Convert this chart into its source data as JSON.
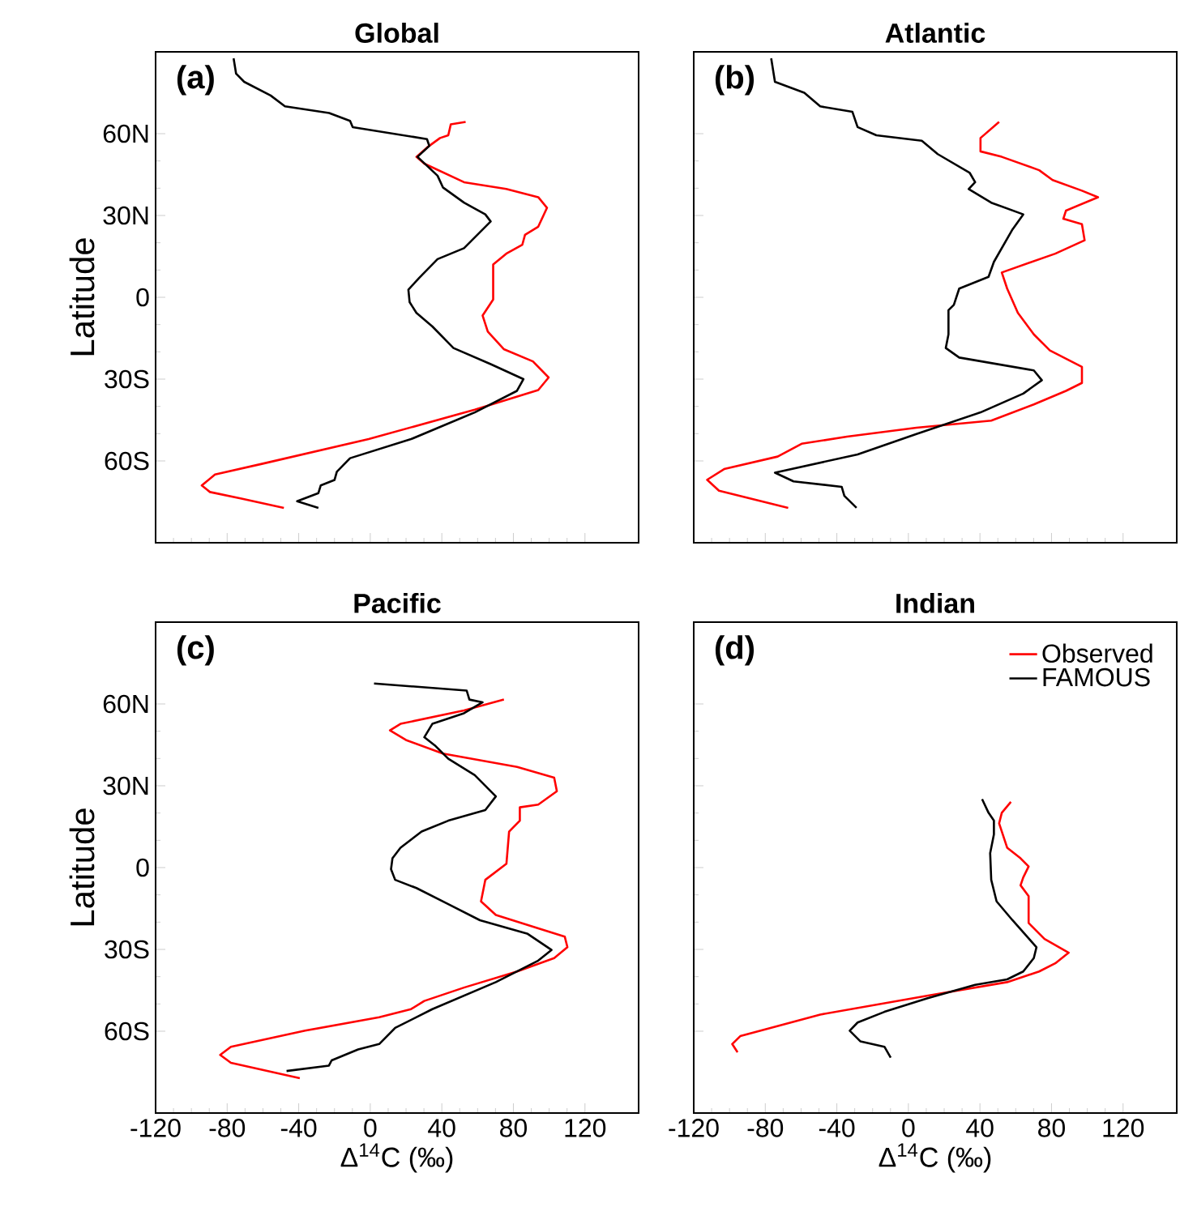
{
  "chart_data": [
    {
      "type": "line",
      "title": "Global",
      "ylabel": "Latitude",
      "annotations": [
        "(a)"
      ],
      "xlim": [
        -120,
        150
      ],
      "ylim": [
        -90,
        90
      ],
      "xticks": [
        -120,
        -80,
        -40,
        0,
        40,
        80,
        120
      ],
      "yticks": [
        {
          "value": -60,
          "label": "60S"
        },
        {
          "value": -30,
          "label": "30S"
        },
        0,
        {
          "value": 30,
          "label": "30N"
        },
        {
          "value": 60,
          "label": "60N"
        }
      ],
      "tick_labels": "y",
      "series": [
        {
          "color": "#ff0000",
          "x": [
            53.3,
            45,
            43.6,
            39,
            31.7,
            25.8,
            30.2,
            52.4,
            76,
            93.9,
            98.8,
            93.9,
            86.5,
            85,
            76,
            68.7,
            68.7,
            62.8,
            65.7,
            74.6,
            90.9,
            99.7,
            93.9,
            58.4,
            -0.9,
            -60.1,
            -86.8,
            -94.2,
            -89.6,
            -72,
            -48.3
          ],
          "values": [
            64.3,
            63.4,
            59.4,
            58.4,
            54.9,
            51.5,
            49,
            42.2,
            39.7,
            36.7,
            32.8,
            25.9,
            22.9,
            19.3,
            16,
            12,
            -0.8,
            -6.7,
            -12.6,
            -19,
            -23.5,
            -29.4,
            -34,
            -41.2,
            -52,
            -61,
            -65,
            -69,
            -71.4,
            -73.8,
            -77.2
          ]
        },
        {
          "color": "#000000",
          "x": [
            -76.4,
            -75,
            -70.5,
            -55.7,
            -47.7,
            -23,
            -11.3,
            -9.8,
            31.7,
            33,
            26.4,
            37.6,
            40.6,
            52.4,
            64.3,
            67.3,
            52.4,
            37.6,
            27.3,
            21.3,
            22,
            25.8,
            34.7,
            46.5,
            67.3,
            85.6,
            82,
            58.4,
            22.8,
            -11.3,
            -18.7,
            -20,
            -27.7,
            -29,
            -40.9,
            -29
          ],
          "values": [
            87.6,
            82,
            79,
            74,
            70,
            67.6,
            64.7,
            62.4,
            58,
            55.5,
            51.5,
            44.6,
            40.3,
            34.7,
            30.4,
            27.8,
            18,
            14,
            7.1,
            2.8,
            -1.8,
            -5.7,
            -10.7,
            -18.6,
            -24.5,
            -30,
            -34.3,
            -42.2,
            -52,
            -59,
            -64,
            -67,
            -69,
            -71.8,
            -74.8,
            -77.2
          ]
        }
      ]
    },
    {
      "type": "line",
      "title": "Atlantic",
      "annotations": [
        "(b)"
      ],
      "xlim": [
        -120,
        150
      ],
      "ylim": [
        -90,
        90
      ],
      "xticks": [
        -120,
        -80,
        -40,
        0,
        40,
        80,
        120
      ],
      "yticks": [
        {
          "value": -60,
          "label": null
        },
        {
          "value": -30,
          "label": null
        },
        {
          "value": 0,
          "label": null
        },
        {
          "value": 30,
          "label": null
        },
        {
          "value": 60,
          "label": null
        }
      ],
      "tick_labels": false,
      "series": [
        {
          "color": "#ff0000",
          "x": [
            50.7,
            40.3,
            40.3,
            52.2,
            73.1,
            80.6,
            97,
            106,
            88.1,
            86.6,
            97,
            98.5,
            82.1,
            52.2,
            55.2,
            61.2,
            70.1,
            79.1,
            97,
            97,
            88.1,
            70.1,
            46.3,
            4.5,
            -34.3,
            -59.7,
            -73.1,
            -103,
            -112.5,
            -105.9,
            -67.2
          ],
          "values": [
            64.3,
            58.4,
            53.5,
            51.5,
            46.6,
            43,
            39.1,
            36.7,
            31.8,
            28.8,
            26.8,
            20.9,
            16,
            9.1,
            3.2,
            -5.7,
            -13.6,
            -19.5,
            -25.5,
            -31.4,
            -34.3,
            -39.3,
            -45.2,
            -47.8,
            -51.1,
            -53.7,
            -58.4,
            -63,
            -66.9,
            -70.9,
            -77.2
          ]
        },
        {
          "color": "#000000",
          "x": [
            -76.7,
            -74.6,
            -58.2,
            -49.3,
            -31.3,
            -28.4,
            -17.9,
            7.5,
            16.4,
            34.3,
            37.3,
            33.7,
            46.3,
            64.2,
            58.2,
            47.8,
            44.8,
            28.4,
            25.4,
            22.4,
            22.4,
            20.9,
            28.4,
            70.1,
            74.6,
            64.2,
            40.3,
            4.5,
            -28.4,
            -74.6,
            -64.2,
            -37.3,
            -35.8,
            -29
          ],
          "values": [
            87.6,
            79,
            75,
            70,
            68,
            62.4,
            59.4,
            57.4,
            52.5,
            45.6,
            42.2,
            39.7,
            34.7,
            30.4,
            24.9,
            13,
            7.5,
            3.2,
            -2.8,
            -4.7,
            -13.6,
            -18.6,
            -22.1,
            -26.8,
            -30.4,
            -35.3,
            -42.2,
            -50.1,
            -57.6,
            -64.3,
            -67.5,
            -69.5,
            -72.8,
            -77.2
          ]
        }
      ]
    },
    {
      "type": "line",
      "title": "Pacific",
      "xlabel": "Δ$^{14}$C  (‰)",
      "ylabel": "Latitude",
      "annotations": [
        "(c)"
      ],
      "xlim": [
        -120,
        150
      ],
      "ylim": [
        -90,
        90
      ],
      "xticks": [
        -120,
        -80,
        -40,
        0,
        40,
        80,
        120
      ],
      "yticks": [
        {
          "value": -60,
          "label": "60S"
        },
        {
          "value": -30,
          "label": "30S"
        },
        0,
        {
          "value": 30,
          "label": "30N"
        },
        {
          "value": 60,
          "label": "60N"
        }
      ],
      "series": [
        {
          "color": "#ff0000",
          "x": [
            74.7,
            52.4,
            16.9,
            11,
            19.9,
            40.6,
            82.1,
            102.8,
            104.3,
            93.9,
            83.6,
            83.6,
            77.6,
            76.1,
            64.3,
            61.9,
            70.2,
            93.9,
            108.7,
            110.2,
            102.8,
            82.1,
            52.4,
            30.2,
            22.8,
            5,
            -36.4,
            -77.9,
            -83.9,
            -77.9,
            -39.4
          ],
          "values": [
            61.6,
            57.6,
            52.7,
            50.3,
            46.8,
            41.8,
            36.9,
            33,
            28,
            23.1,
            22.1,
            17.2,
            13.2,
            1.4,
            -4.5,
            -12.4,
            -17.4,
            -22.3,
            -25.3,
            -29.2,
            -33.2,
            -38.1,
            -44,
            -48.9,
            -51.9,
            -54.9,
            -59.8,
            -65.7,
            -68.7,
            -71.6,
            -77.2
          ]
        },
        {
          "color": "#000000",
          "x": [
            2.1,
            53.9,
            55.4,
            62.8,
            52.4,
            34.7,
            30.2,
            36.1,
            43.6,
            58.4,
            70.2,
            64.3,
            43.6,
            28.7,
            16.9,
            12.4,
            11.6,
            13.9,
            25.8,
            43.6,
            61.3,
            88,
            101.3,
            93.9,
            70.2,
            34.7,
            13.9,
            5,
            -6.8,
            -21.6,
            -23.1,
            -46.8
          ],
          "values": [
            67.5,
            64.9,
            61.6,
            60.6,
            56.6,
            52.7,
            47.8,
            44.8,
            39.9,
            33.9,
            26.1,
            21.1,
            17.2,
            13.2,
            7.3,
            3.4,
            -0.6,
            -4.5,
            -7.5,
            -13.4,
            -19.3,
            -24.3,
            -30.2,
            -34.1,
            -42,
            -51.9,
            -58.8,
            -64.7,
            -66.7,
            -70.7,
            -72.6,
            -74.6
          ]
        }
      ]
    },
    {
      "type": "line",
      "title": "Indian",
      "xlabel": "Δ$^{14}$C  (‰)",
      "annotations": [
        "(d)"
      ],
      "xlim": [
        -120,
        150
      ],
      "ylim": [
        -90,
        90
      ],
      "xticks": [
        -120,
        -80,
        -40,
        0,
        40,
        80,
        120
      ],
      "yticks": [
        {
          "value": -60,
          "label": null
        },
        {
          "value": -30,
          "label": null
        },
        {
          "value": 0,
          "label": null
        },
        {
          "value": 30,
          "label": null
        },
        {
          "value": 60,
          "label": null
        }
      ],
      "tick_labels": "x",
      "legend": "top right",
      "series": [
        {
          "name": "Observed",
          "color": "#ff0000",
          "x": [
            57.3,
            52.2,
            50.7,
            55.2,
            62.7,
            67.2,
            64.2,
            62.7,
            67.2,
            67.2,
            76.1,
            89.6,
            82.1,
            73.1,
            55.2,
            10.4,
            -49.3,
            -94,
            -98.5,
            -95.5
          ],
          "values": [
            24.1,
            20.1,
            16.2,
            7.3,
            3.4,
            0.4,
            -3.6,
            -6.5,
            -10.5,
            -20.3,
            -26.2,
            -31.2,
            -35.1,
            -38.1,
            -42,
            -47,
            -53.9,
            -61.8,
            -64.7,
            -67.7
          ]
        },
        {
          "name": "FAMOUS",
          "color": "#000000",
          "x": [
            41.2,
            44.8,
            47.8,
            47.8,
            45.7,
            46.3,
            49.3,
            58.2,
            71.6,
            70.1,
            64.2,
            55.2,
            37.3,
            10.4,
            -13.4,
            -28.4,
            -32.8,
            -26.9,
            -13.4,
            -9.9
          ],
          "values": [
            25.1,
            20.1,
            17.2,
            12.2,
            5.3,
            -4.5,
            -12.4,
            -19.3,
            -29.2,
            -33.2,
            -38.1,
            -41,
            -43,
            -48,
            -52.9,
            -56.8,
            -59.8,
            -63.7,
            -65.7,
            -69.7
          ]
        }
      ]
    }
  ]
}
